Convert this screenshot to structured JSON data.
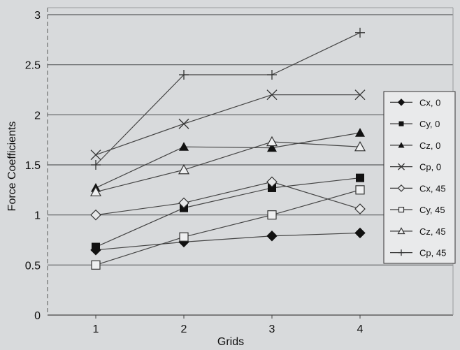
{
  "chart_data": {
    "type": "line",
    "title": "",
    "xlabel": "Grids",
    "ylabel": "Force Coefficients",
    "x": [
      1,
      2,
      3,
      4
    ],
    "ylim": [
      0,
      3
    ],
    "yticks": [
      "0",
      "0.5",
      "1",
      "1.5",
      "2",
      "2.5",
      "3"
    ],
    "xticks": [
      "1",
      "2",
      "3",
      "4"
    ],
    "grid": "horizontal",
    "legend_position": "right",
    "series": [
      {
        "name": "Cx, 0",
        "marker": "diamond-filled",
        "values": [
          0.65,
          0.73,
          0.79,
          0.82
        ]
      },
      {
        "name": "Cy, 0",
        "marker": "square-filled",
        "values": [
          0.68,
          1.07,
          1.27,
          1.37
        ]
      },
      {
        "name": "Cz, 0",
        "marker": "triangle-filled",
        "values": [
          1.27,
          1.68,
          1.67,
          1.82
        ]
      },
      {
        "name": "Cp, 0",
        "marker": "x",
        "values": [
          1.6,
          1.91,
          2.2,
          2.2
        ]
      },
      {
        "name": "Cx, 45",
        "marker": "diamond-open",
        "values": [
          1.0,
          1.12,
          1.33,
          1.06
        ]
      },
      {
        "name": "Cy, 45",
        "marker": "square-open",
        "values": [
          0.5,
          0.78,
          1.0,
          1.25
        ]
      },
      {
        "name": "Cz, 45",
        "marker": "triangle-open",
        "values": [
          1.23,
          1.45,
          1.73,
          1.68
        ]
      },
      {
        "name": "Cp, 45",
        "marker": "plus",
        "values": [
          1.5,
          2.4,
          2.4,
          2.82
        ]
      }
    ]
  }
}
